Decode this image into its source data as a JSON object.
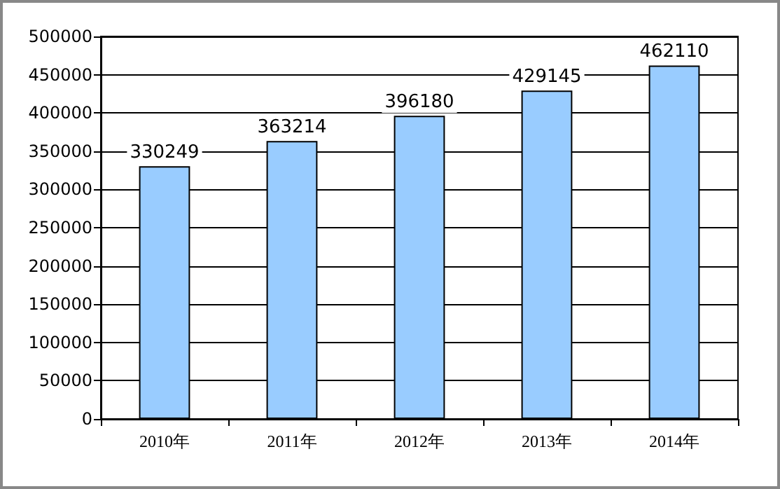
{
  "chart_data": {
    "type": "bar",
    "categories": [
      "2010年",
      "2011年",
      "2012年",
      "2013年",
      "2014年"
    ],
    "values": [
      330249,
      363214,
      396180,
      429145,
      462110
    ],
    "color": "#99ccff",
    "ylim": [
      0,
      500000
    ],
    "yticks": [
      0,
      50000,
      100000,
      150000,
      200000,
      250000,
      300000,
      350000,
      400000,
      450000,
      500000
    ],
    "grid": "y",
    "data_labels": true
  }
}
